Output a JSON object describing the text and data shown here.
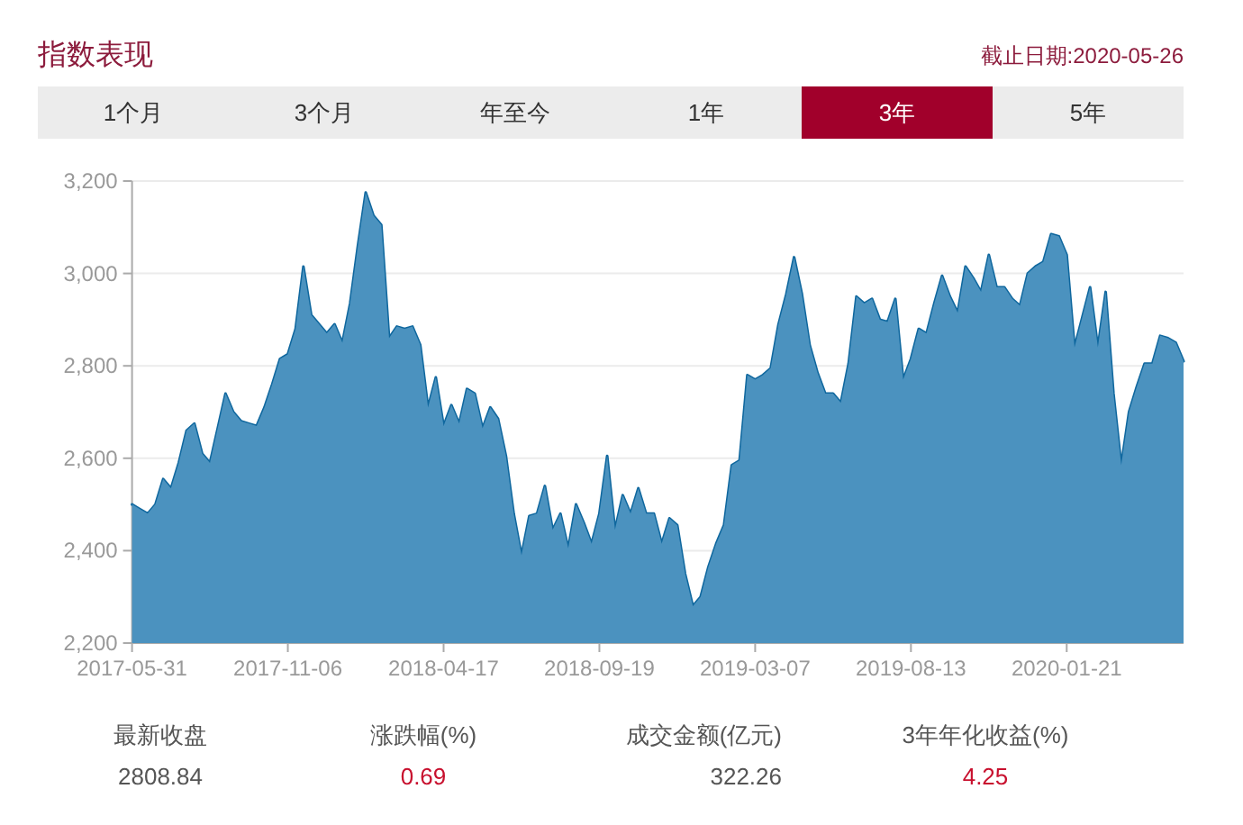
{
  "chart_data": [
    {
      "type": "other",
      "title": "指数表现",
      "subtitle": "截止日期:2020-05-26",
      "annotations": [
        "1个月",
        "3个月",
        "年至今",
        "1年",
        "3年",
        "5年"
      ]
    },
    {
      "type": "area",
      "color": "#4b92bf",
      "grid": "y",
      "ylim": [
        2200,
        3200
      ],
      "yticks": [
        {
          "value": 2200,
          "label": "2,200"
        },
        {
          "value": 2400,
          "label": "2,400"
        },
        {
          "value": 2600,
          "label": "2,600"
        },
        {
          "value": 2800,
          "label": "2,800"
        },
        {
          "value": 3000,
          "label": "3,000"
        },
        {
          "value": 3200,
          "label": "3,200"
        }
      ],
      "categories": [
        "2017-05-31",
        null,
        null,
        null,
        null,
        null,
        null,
        null,
        null,
        null,
        null,
        null,
        null,
        null,
        null,
        null,
        null,
        null,
        null,
        null,
        "2017-11-06",
        null,
        null,
        null,
        null,
        null,
        null,
        null,
        null,
        null,
        null,
        null,
        null,
        null,
        null,
        null,
        null,
        null,
        null,
        null,
        "2018-04-17",
        null,
        null,
        null,
        null,
        null,
        null,
        null,
        null,
        null,
        null,
        null,
        null,
        null,
        null,
        null,
        null,
        null,
        null,
        null,
        "2018-09-19",
        null,
        null,
        null,
        null,
        null,
        null,
        null,
        null,
        null,
        null,
        null,
        null,
        null,
        null,
        null,
        null,
        null,
        null,
        null,
        "2019-03-07",
        null,
        null,
        null,
        null,
        null,
        null,
        null,
        null,
        null,
        null,
        null,
        null,
        null,
        null,
        null,
        null,
        null,
        null,
        null,
        "2019-08-13",
        null,
        null,
        null,
        null,
        null,
        null,
        null,
        null,
        null,
        null,
        null,
        null,
        null,
        null,
        null,
        null,
        null,
        null,
        null,
        "2020-01-21",
        null,
        null,
        null,
        null,
        null,
        null,
        null,
        null,
        null,
        null,
        null,
        null,
        null,
        null,
        null
      ],
      "values": [
        2500,
        2490,
        2480,
        2500,
        2555,
        2535,
        2590,
        2660,
        2675,
        2610,
        2590,
        2665,
        2740,
        2700,
        2680,
        2675,
        2670,
        2710,
        2760,
        2815,
        2825,
        2880,
        3015,
        2910,
        2890,
        2870,
        2890,
        2850,
        2935,
        3060,
        3175,
        3125,
        3105,
        2860,
        2885,
        2880,
        2885,
        2845,
        2710,
        2775,
        2670,
        2715,
        2675,
        2750,
        2740,
        2665,
        2710,
        2685,
        2605,
        2480,
        2390,
        2475,
        2480,
        2540,
        2445,
        2480,
        2405,
        2500,
        2460,
        2415,
        2480,
        2605,
        2445,
        2520,
        2480,
        2535,
        2480,
        2480,
        2415,
        2470,
        2455,
        2350,
        2280,
        2300,
        2365,
        2415,
        2455,
        2585,
        2595,
        2780,
        2770,
        2780,
        2795,
        2890,
        2955,
        3035,
        2955,
        2845,
        2785,
        2740,
        2740,
        2720,
        2805,
        2950,
        2935,
        2945,
        2900,
        2895,
        2945,
        2770,
        2815,
        2880,
        2870,
        2935,
        2995,
        2950,
        2915,
        3015,
        2990,
        2960,
        3040,
        2970,
        2970,
        2945,
        2930,
        3000,
        3015,
        3025,
        3085,
        3080,
        3040,
        2840,
        2905,
        2970,
        2840,
        2960,
        2740,
        2585,
        2700,
        2755,
        2805,
        2805,
        2865,
        2860,
        2850,
        2810
      ]
    },
    {
      "type": "other",
      "annotations": [
        "最新收盘",
        "2808.84",
        "涨跌幅(%)",
        "0.69",
        "成交金额(亿元)",
        "322.26",
        "3年年化收益(%)",
        "4.25"
      ]
    }
  ]
}
